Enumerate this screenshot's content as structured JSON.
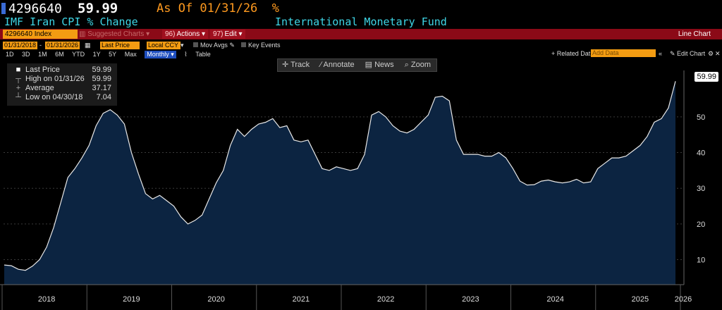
{
  "header": {
    "security_id": "4296640",
    "last_price": "59.99",
    "as_of": "As Of 01/31/26",
    "pct_symbol": "%",
    "title": "IMF Iran CPI % Change",
    "source": "International Monetary Fund"
  },
  "toolbar_red": {
    "ticker": "4296640 Index",
    "suggested": "Suggested Charts",
    "actions_num": "96)",
    "actions": "Actions",
    "edit_num": "97)",
    "edit": "Edit",
    "chart_type": "Line Chart"
  },
  "controls": {
    "start_date": "01/31/2018",
    "end_date": "01/31/2026",
    "field": "Last Price",
    "currency": "Local CCY",
    "mov_avgs": "Mov Avgs",
    "key_events": "Key Events",
    "periods": [
      "1D",
      "3D",
      "1M",
      "6M",
      "YTD",
      "1Y",
      "5Y",
      "Max"
    ],
    "frequency": "Monthly",
    "table": "Table",
    "related": "+ Related Dat",
    "add_data_placeholder": "Add Data",
    "edit_chart": "Edit Chart"
  },
  "chart_toolbar": {
    "track": "Track",
    "annotate": "Annotate",
    "news": "News",
    "zoom": "Zoom"
  },
  "legend": {
    "last_price_label": "Last Price",
    "last_price_value": "59.99",
    "high_label": "High on 01/31/26",
    "high_value": "59.99",
    "average_label": "Average",
    "average_value": "37.17",
    "low_label": "Low on 04/30/18",
    "low_value": "7.04"
  },
  "chart_data": {
    "type": "area",
    "title": "IMF Iran CPI % Change",
    "series": [
      {
        "name": "Last Price",
        "color": "#ffffff",
        "fill": "#0d2340"
      }
    ],
    "x_start": "2018-01",
    "x_end": "2026-01",
    "values": [
      8.5,
      8.3,
      7.3,
      7.0,
      8.2,
      10.0,
      13.5,
      19.0,
      26.0,
      33.0,
      35.5,
      38.5,
      42.0,
      47.5,
      51.0,
      52.0,
      50.5,
      48.0,
      40.0,
      34.0,
      28.5,
      27.0,
      28.0,
      26.5,
      25.0,
      22.0,
      20.0,
      21.0,
      22.5,
      27.0,
      31.5,
      35.0,
      42.0,
      46.5,
      44.5,
      46.5,
      48.0,
      48.5,
      49.5,
      47.0,
      47.5,
      43.5,
      43.0,
      43.5,
      39.5,
      35.5,
      35.0,
      36.0,
      35.5,
      35.0,
      35.5,
      39.5,
      50.5,
      51.5,
      50.0,
      47.5,
      46.0,
      45.5,
      46.5,
      48.5,
      50.5,
      55.5,
      55.8,
      54.5,
      43.5,
      39.5,
      39.5,
      39.5,
      39.0,
      39.0,
      40.0,
      38.5,
      35.5,
      32.0,
      30.9,
      31.0,
      32.0,
      32.3,
      31.8,
      31.5,
      31.8,
      32.5,
      31.5,
      31.8,
      35.5,
      37.0,
      38.5,
      38.5,
      39.0,
      40.5,
      42.0,
      44.5,
      48.5,
      49.5,
      52.5,
      59.99
    ],
    "ylim": [
      3,
      63
    ],
    "y_ticks": [
      10,
      20,
      30,
      40,
      50
    ],
    "x_tick_labels": [
      "2018",
      "2019",
      "2020",
      "2021",
      "2022",
      "2023",
      "2024",
      "2025",
      "2026"
    ],
    "grid": true,
    "last_value_label": "59.99",
    "annotations": [
      "High on 01/31/26 59.99",
      "Low on 04/30/18 7.04",
      "Average 37.17"
    ]
  }
}
